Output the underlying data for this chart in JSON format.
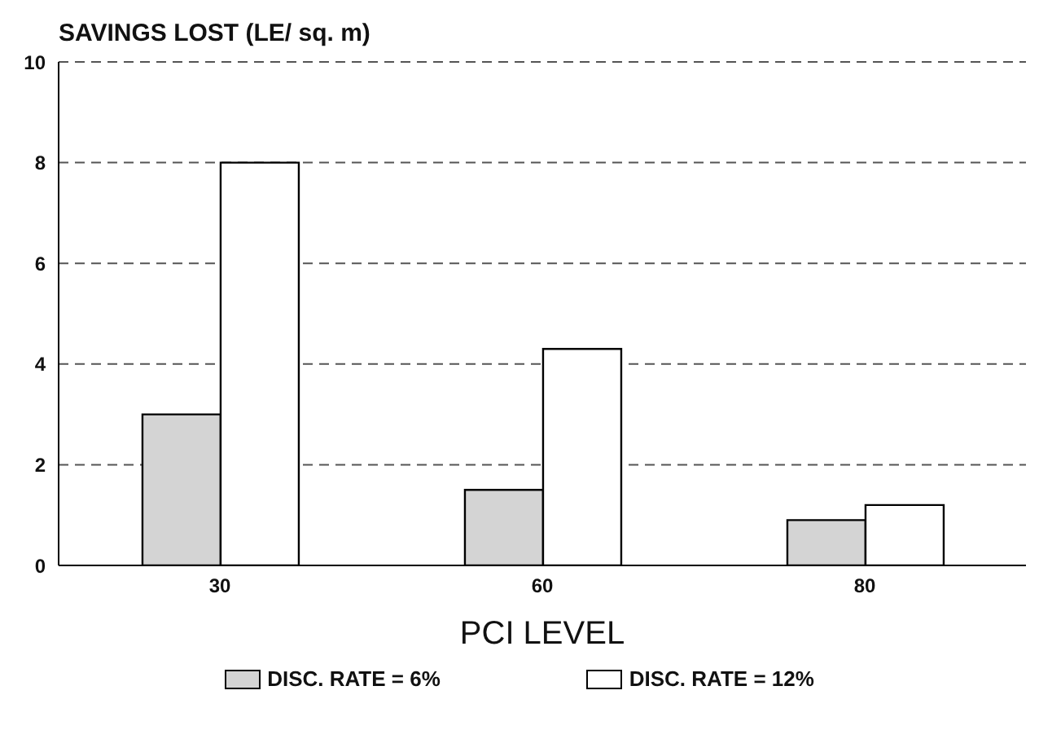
{
  "chart_data": {
    "type": "bar",
    "title": "SAVINGS LOST (LE/ sq. m)",
    "xlabel": "PCI  LEVEL",
    "categories": [
      "30",
      "60",
      "80"
    ],
    "series": [
      {
        "name": "DISC. RATE = 6%",
        "color": "#d4d4d4",
        "values": [
          3.0,
          1.5,
          0.9
        ]
      },
      {
        "name": "DISC. RATE = 12%",
        "color": "#ffffff",
        "values": [
          8.0,
          4.3,
          1.2
        ]
      }
    ],
    "ylim": [
      0,
      10
    ],
    "yticks": [
      0,
      2,
      4,
      6,
      8,
      10
    ],
    "grid": "y",
    "legend": "bottom"
  }
}
